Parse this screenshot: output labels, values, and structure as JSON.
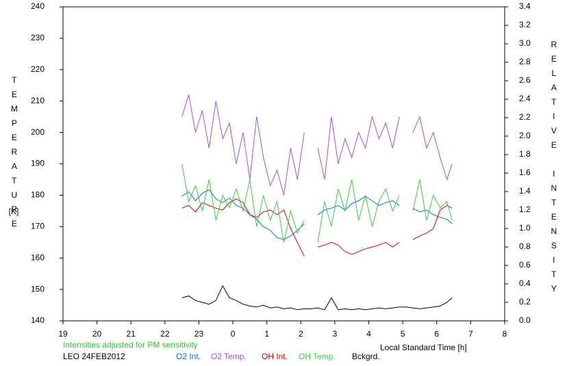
{
  "chart_data": {
    "type": "line",
    "y_label": "TEMPERATURE",
    "y_unit": "[K]",
    "y2_label": "RELATIVE INTENSITY",
    "x_label": "Local Standard Time [h]",
    "annotations": [
      "Intensities adjusted for PM sensitivity",
      "LEO 24FEB2012"
    ],
    "xlim": [
      19,
      32
    ],
    "xticks": [
      19,
      20,
      21,
      22,
      23,
      {
        "value": 24,
        "label": "0"
      },
      {
        "value": 25,
        "label": "1"
      },
      {
        "value": 26,
        "label": "2"
      },
      {
        "value": 27,
        "label": "3"
      },
      {
        "value": 28,
        "label": "4"
      },
      {
        "value": 29,
        "label": "5"
      },
      {
        "value": 30,
        "label": "6"
      },
      {
        "value": 31,
        "label": "7"
      },
      {
        "value": 32,
        "label": "8"
      }
    ],
    "ylim": [
      140,
      240
    ],
    "yticks": [
      140,
      150,
      160,
      170,
      180,
      190,
      200,
      210,
      220,
      230,
      240
    ],
    "y2lim": [
      0,
      3.4
    ],
    "y2ticks": [
      {
        "value": 0,
        "label": "0.0"
      },
      0.2,
      0.4,
      0.6,
      0.8,
      {
        "value": 1,
        "label": "1.0"
      },
      1.2,
      1.4,
      1.6,
      1.8,
      {
        "value": 2,
        "label": "2.0"
      },
      2.2,
      2.4,
      2.6,
      2.8,
      {
        "value": 3,
        "label": "3.0"
      },
      3.2,
      3.4
    ],
    "x": [
      22.5,
      22.7,
      22.9,
      23.1,
      23.3,
      23.5,
      23.7,
      23.9,
      24.1,
      24.3,
      24.5,
      24.7,
      24.9,
      25.1,
      25.3,
      25.5,
      25.7,
      25.9,
      26.1,
      26.3,
      26.5,
      26.7,
      26.9,
      27.1,
      27.3,
      27.5,
      27.7,
      27.9,
      28.1,
      28.3,
      28.5,
      28.7,
      28.9,
      29.1,
      29.3,
      29.5,
      29.7,
      29.9,
      30.1,
      30.3,
      30.45
    ],
    "series": [
      {
        "name": "O2 Int.",
        "color": "#0a6fd0",
        "axis": "y2",
        "values": [
          1.35,
          1.4,
          1.3,
          1.38,
          1.42,
          1.32,
          1.28,
          1.33,
          1.25,
          1.22,
          1.15,
          1.1,
          1.02,
          0.98,
          0.9,
          0.88,
          0.92,
          0.98,
          1.05,
          null,
          1.15,
          1.2,
          1.22,
          1.25,
          1.2,
          1.27,
          1.3,
          1.35,
          1.3,
          1.25,
          1.28,
          1.3,
          1.25,
          null,
          1.22,
          1.18,
          1.2,
          1.15,
          1.12,
          1.1,
          1.05
        ]
      },
      {
        "name": "O2 Temp.",
        "color": "#a050d8",
        "axis": "y",
        "values": [
          205,
          212,
          200,
          207,
          195,
          210,
          198,
          203,
          190,
          200,
          185,
          205,
          192,
          183,
          188,
          180,
          195,
          185,
          200,
          null,
          195,
          185,
          205,
          190,
          198,
          192,
          200,
          195,
          205,
          198,
          203,
          195,
          205,
          null,
          200,
          205,
          195,
          200,
          192,
          185,
          190
        ]
      },
      {
        "name": "OH Int.",
        "color": "#d00000",
        "axis": "y2",
        "values": [
          1.22,
          1.25,
          1.18,
          1.28,
          1.25,
          1.22,
          1.2,
          1.28,
          1.32,
          1.28,
          1.15,
          1.12,
          1.18,
          1.2,
          1.15,
          1.2,
          1.0,
          0.85,
          0.7,
          null,
          0.8,
          0.82,
          0.85,
          0.82,
          0.75,
          0.72,
          0.75,
          0.78,
          0.8,
          0.82,
          0.85,
          0.8,
          0.85,
          null,
          0.88,
          0.92,
          0.95,
          1.0,
          1.2,
          1.25,
          1.22
        ]
      },
      {
        "name": "OH Temp.",
        "color": "#40c840",
        "axis": "y",
        "values": [
          190,
          178,
          183,
          175,
          185,
          172,
          180,
          176,
          182,
          175,
          185,
          170,
          180,
          172,
          178,
          165,
          175,
          168,
          172,
          null,
          165,
          178,
          170,
          182,
          175,
          185,
          172,
          180,
          170,
          178,
          182,
          175,
          180,
          null,
          175,
          185,
          172,
          180,
          176,
          178,
          172
        ]
      },
      {
        "name": "Bckgrd.",
        "color": "#000000",
        "axis": "y2",
        "values": [
          0.25,
          0.27,
          0.22,
          0.2,
          0.18,
          0.22,
          0.38,
          0.25,
          0.22,
          0.18,
          0.16,
          0.15,
          0.17,
          0.14,
          0.15,
          0.13,
          0.14,
          0.12,
          0.13,
          0.13,
          0.14,
          0.12,
          0.25,
          0.12,
          0.13,
          0.12,
          0.13,
          0.12,
          0.13,
          0.14,
          0.13,
          0.14,
          0.15,
          0.15,
          0.14,
          0.13,
          0.14,
          0.15,
          0.16,
          0.2,
          0.25
        ]
      }
    ]
  }
}
